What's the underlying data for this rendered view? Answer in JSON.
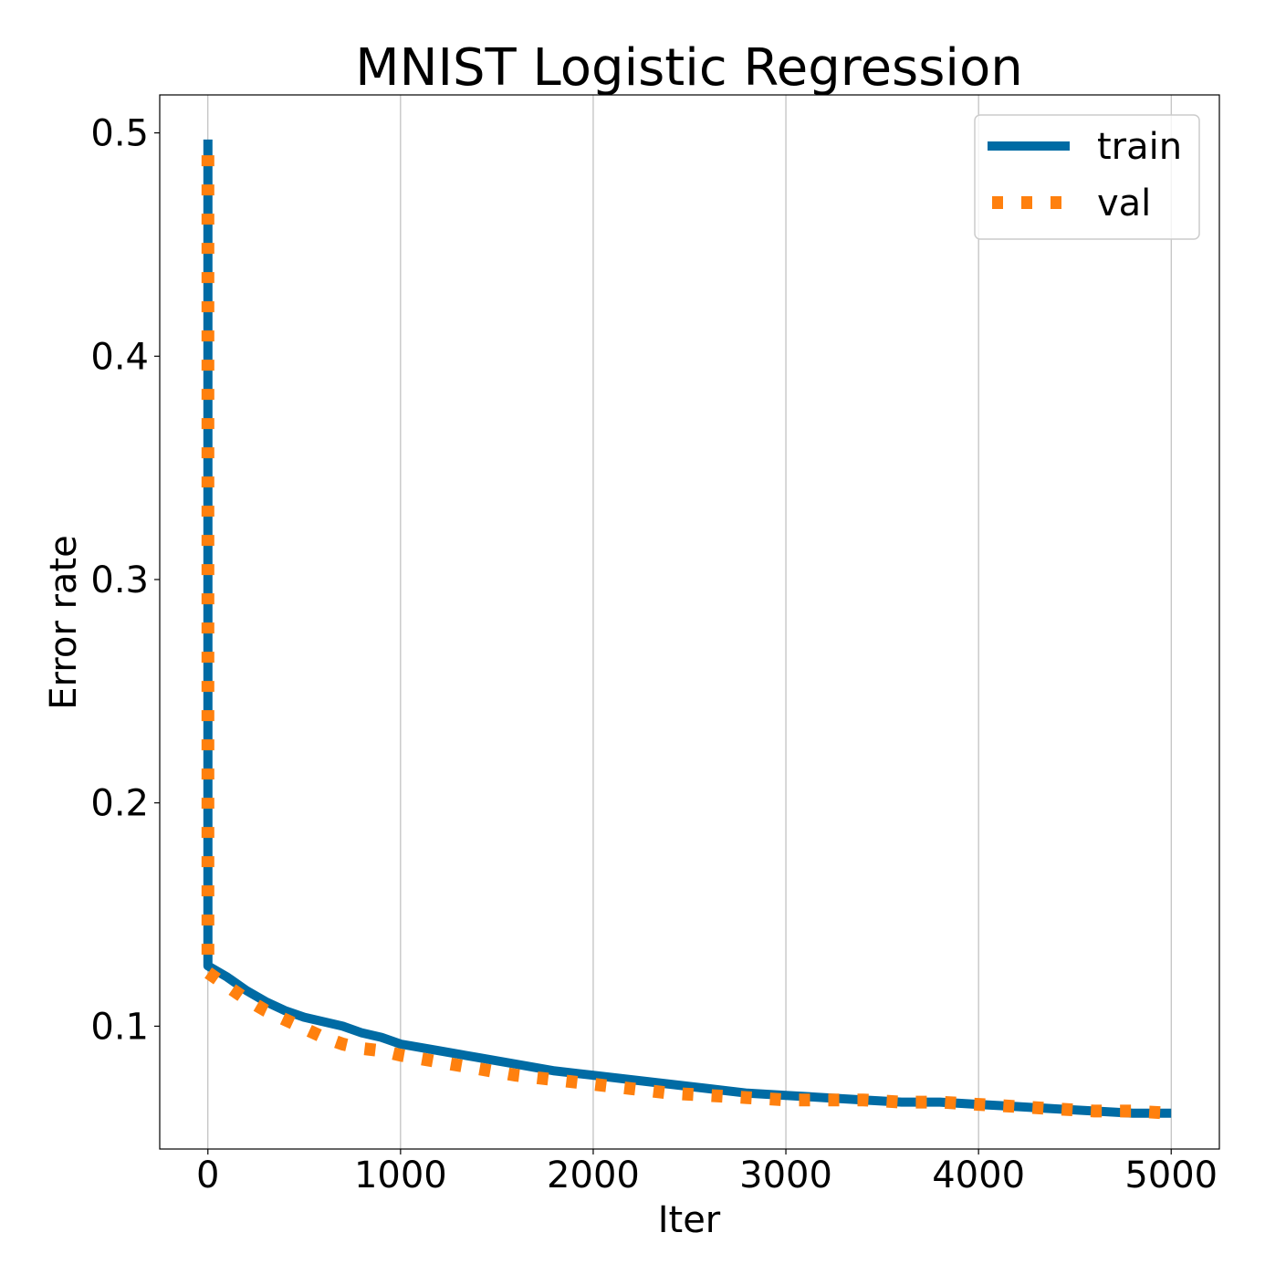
{
  "chart_data": {
    "type": "line",
    "title": "MNIST Logistic Regression",
    "xlabel": "Iter",
    "ylabel": "Error rate",
    "xlim": [
      -250,
      5250
    ],
    "ylim": [
      0.045,
      0.517
    ],
    "xticks": [
      0,
      1000,
      2000,
      3000,
      4000,
      5000
    ],
    "yticks": [
      0.1,
      0.2,
      0.3,
      0.4,
      0.5
    ],
    "grid": "x-only",
    "legend": "top-right",
    "series": [
      {
        "name": "train",
        "color": "#006ba4",
        "style": "solid",
        "x": [
          0,
          0,
          100,
          200,
          300,
          400,
          500,
          600,
          700,
          800,
          900,
          1000,
          1200,
          1400,
          1600,
          1800,
          2000,
          2200,
          2400,
          2600,
          2800,
          3000,
          3200,
          3400,
          3600,
          3800,
          4000,
          4200,
          4400,
          4600,
          4800,
          5000
        ],
        "y": [
          0.497,
          0.127,
          0.122,
          0.116,
          0.111,
          0.107,
          0.104,
          0.102,
          0.1,
          0.097,
          0.095,
          0.092,
          0.089,
          0.086,
          0.083,
          0.08,
          0.078,
          0.076,
          0.074,
          0.072,
          0.07,
          0.069,
          0.068,
          0.067,
          0.066,
          0.066,
          0.065,
          0.064,
          0.063,
          0.062,
          0.061,
          0.061
        ]
      },
      {
        "name": "val",
        "color": "#ff800e",
        "style": "dotted",
        "x": [
          0,
          0,
          100,
          200,
          300,
          400,
          500,
          600,
          700,
          800,
          900,
          1000,
          1200,
          1400,
          1600,
          1800,
          2000,
          2200,
          2400,
          2600,
          2800,
          3000,
          3200,
          3400,
          3600,
          3800,
          4000,
          4200,
          4400,
          4600,
          4800,
          5000
        ],
        "y": [
          0.49,
          0.124,
          0.118,
          0.112,
          0.107,
          0.103,
          0.099,
          0.095,
          0.092,
          0.09,
          0.089,
          0.087,
          0.084,
          0.081,
          0.078,
          0.076,
          0.074,
          0.072,
          0.07,
          0.069,
          0.068,
          0.067,
          0.067,
          0.067,
          0.066,
          0.066,
          0.065,
          0.064,
          0.063,
          0.062,
          0.062,
          0.061
        ]
      }
    ]
  }
}
